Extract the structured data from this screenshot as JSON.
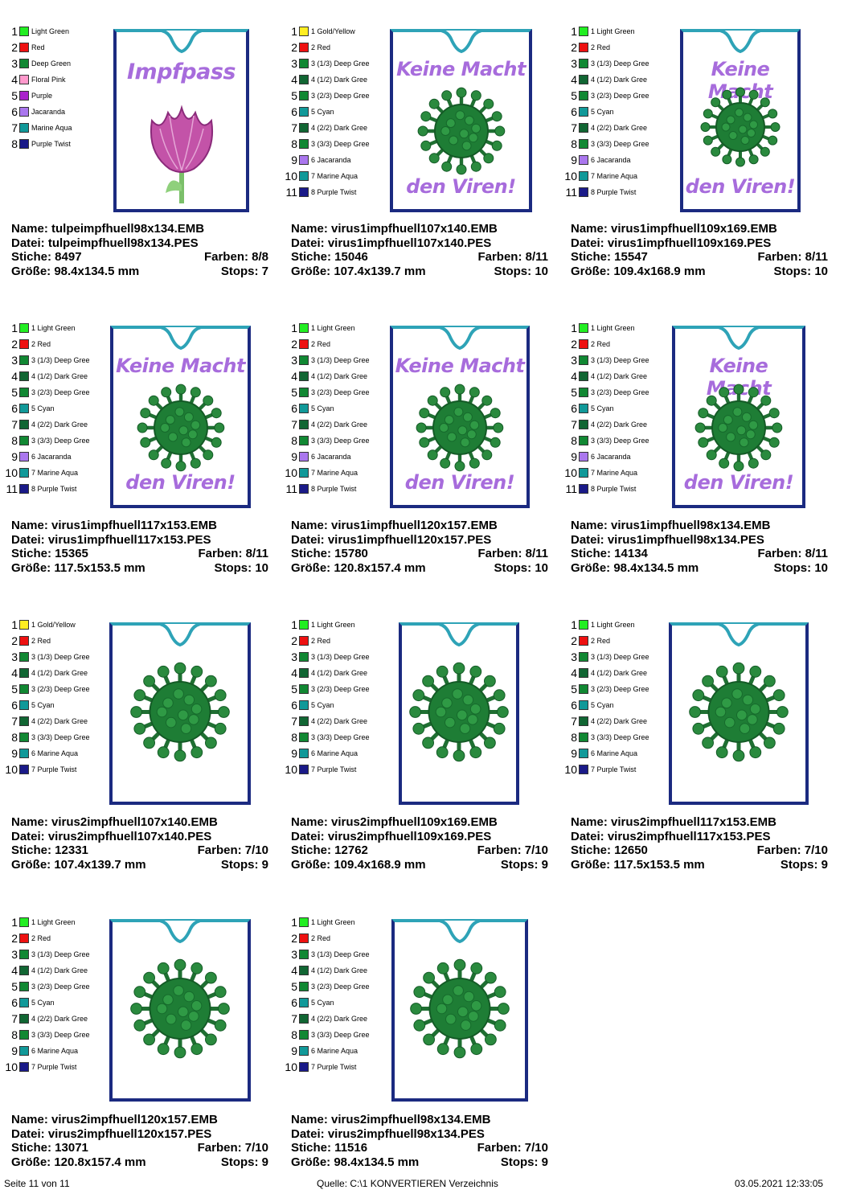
{
  "palettes": {
    "A": [
      {
        "num": "1",
        "label": "Light Green",
        "color": "#22ee22"
      },
      {
        "num": "2",
        "label": "Red",
        "color": "#ee1111"
      },
      {
        "num": "3",
        "label": "Deep Green",
        "color": "#118833"
      },
      {
        "num": "4",
        "label": "Floral Pink",
        "color": "#ff99cc"
      },
      {
        "num": "5",
        "label": "Purple",
        "color": "#aa22cc"
      },
      {
        "num": "6",
        "label": "Jacaranda",
        "color": "#aa77ee"
      },
      {
        "num": "7",
        "label": "Marine Aqua",
        "color": "#119999"
      },
      {
        "num": "8",
        "label": "Purple Twist",
        "color": "#1a1a88"
      }
    ],
    "B": [
      {
        "num": "1",
        "label": "1 Gold/Yellow",
        "color": "#ffee22"
      },
      {
        "num": "2",
        "label": "2 Red",
        "color": "#ee1111"
      },
      {
        "num": "3",
        "label": "3 (1/3) Deep Gree",
        "color": "#118833"
      },
      {
        "num": "4",
        "label": "4 (1/2) Dark Gree",
        "color": "#116633"
      },
      {
        "num": "5",
        "label": "3 (2/3) Deep Gree",
        "color": "#118833"
      },
      {
        "num": "6",
        "label": "5 Cyan",
        "color": "#119999"
      },
      {
        "num": "7",
        "label": "4 (2/2) Dark Gree",
        "color": "#116633"
      },
      {
        "num": "8",
        "label": "3 (3/3) Deep Gree",
        "color": "#118833"
      },
      {
        "num": "9",
        "label": "6 Jacaranda",
        "color": "#aa77ee"
      },
      {
        "num": "10",
        "label": "7 Marine Aqua",
        "color": "#119999"
      },
      {
        "num": "11",
        "label": "8 Purple Twist",
        "color": "#1a1a88"
      }
    ],
    "C": [
      {
        "num": "1",
        "label": "1 Light Green",
        "color": "#22ee22"
      },
      {
        "num": "2",
        "label": "2 Red",
        "color": "#ee1111"
      },
      {
        "num": "3",
        "label": "3 (1/3) Deep Gree",
        "color": "#118833"
      },
      {
        "num": "4",
        "label": "4 (1/2) Dark Gree",
        "color": "#116633"
      },
      {
        "num": "5",
        "label": "3 (2/3) Deep Gree",
        "color": "#118833"
      },
      {
        "num": "6",
        "label": "5 Cyan",
        "color": "#119999"
      },
      {
        "num": "7",
        "label": "4 (2/2) Dark Gree",
        "color": "#116633"
      },
      {
        "num": "8",
        "label": "3 (3/3) Deep Gree",
        "color": "#118833"
      },
      {
        "num": "9",
        "label": "6 Jacaranda",
        "color": "#aa77ee"
      },
      {
        "num": "10",
        "label": "7 Marine Aqua",
        "color": "#119999"
      },
      {
        "num": "11",
        "label": "8 Purple Twist",
        "color": "#1a1a88"
      }
    ],
    "D": [
      {
        "num": "1",
        "label": "1 Gold/Yellow",
        "color": "#ffee22"
      },
      {
        "num": "2",
        "label": "2 Red",
        "color": "#ee1111"
      },
      {
        "num": "3",
        "label": "3 (1/3) Deep Gree",
        "color": "#118833"
      },
      {
        "num": "4",
        "label": "4 (1/2) Dark Gree",
        "color": "#116633"
      },
      {
        "num": "5",
        "label": "3 (2/3) Deep Gree",
        "color": "#118833"
      },
      {
        "num": "6",
        "label": "5 Cyan",
        "color": "#119999"
      },
      {
        "num": "7",
        "label": "4 (2/2) Dark Gree",
        "color": "#116633"
      },
      {
        "num": "8",
        "label": "3 (3/3) Deep Gree",
        "color": "#118833"
      },
      {
        "num": "9",
        "label": "6 Marine Aqua",
        "color": "#119999"
      },
      {
        "num": "10",
        "label": "7 Purple Twist",
        "color": "#1a1a88"
      }
    ],
    "E": [
      {
        "num": "1",
        "label": "1 Light Green",
        "color": "#22ee22"
      },
      {
        "num": "2",
        "label": "2 Red",
        "color": "#ee1111"
      },
      {
        "num": "3",
        "label": "3 (1/3) Deep Gree",
        "color": "#118833"
      },
      {
        "num": "4",
        "label": "4 (1/2) Dark Gree",
        "color": "#116633"
      },
      {
        "num": "5",
        "label": "3 (2/3) Deep Gree",
        "color": "#118833"
      },
      {
        "num": "6",
        "label": "5 Cyan",
        "color": "#119999"
      },
      {
        "num": "7",
        "label": "4 (2/2) Dark Gree",
        "color": "#116633"
      },
      {
        "num": "8",
        "label": "3 (3/3) Deep Gree",
        "color": "#118833"
      },
      {
        "num": "9",
        "label": "6 Marine Aqua",
        "color": "#119999"
      },
      {
        "num": "10",
        "label": "7 Purple Twist",
        "color": "#1a1a88"
      }
    ]
  },
  "designs": [
    {
      "palette": "A",
      "kind": "tulip",
      "heading": "Impfpass",
      "footer_text": "",
      "name": "Name: tulpeimpfhuell98x134.EMB",
      "file": "Datei: tulpeimpfhuell98x134.PES",
      "stitches": "Stiche: 8497",
      "colors": "Farben: 8/8",
      "size": "Größe: 98.4x134.5 mm",
      "stops": "Stops: 7"
    },
    {
      "palette": "B",
      "kind": "virus-text",
      "heading": "Keine Macht",
      "footer_text": "den Viren!",
      "name": "Name: virus1impfhuell107x140.EMB",
      "file": "Datei: virus1impfhuell107x140.PES",
      "stitches": "Stiche: 15046",
      "colors": "Farben: 8/11",
      "size": "Größe: 107.4x139.7 mm",
      "stops": "Stops: 10"
    },
    {
      "palette": "C",
      "kind": "virus-text",
      "heading": "Keine Macht",
      "footer_text": "den Viren!",
      "name": "Name: virus1impfhuell109x169.EMB",
      "file": "Datei: virus1impfhuell109x169.PES",
      "stitches": "Stiche: 15547",
      "colors": "Farben: 8/11",
      "size": "Größe: 109.4x168.9 mm",
      "stops": "Stops: 10"
    },
    {
      "palette": "C",
      "kind": "virus-text",
      "heading": "Keine Macht",
      "footer_text": "den Viren!",
      "name": "Name: virus1impfhuell117x153.EMB",
      "file": "Datei: virus1impfhuell117x153.PES",
      "stitches": "Stiche: 15365",
      "colors": "Farben: 8/11",
      "size": "Größe: 117.5x153.5 mm",
      "stops": "Stops: 10"
    },
    {
      "palette": "C",
      "kind": "virus-text",
      "heading": "Keine Macht",
      "footer_text": "den Viren!",
      "name": "Name: virus1impfhuell120x157.EMB",
      "file": "Datei: virus1impfhuell120x157.PES",
      "stitches": "Stiche: 15780",
      "colors": "Farben: 8/11",
      "size": "Größe: 120.8x157.4 mm",
      "stops": "Stops: 10"
    },
    {
      "palette": "C",
      "kind": "virus-text",
      "heading": "Keine Macht",
      "footer_text": "den Viren!",
      "name": "Name: virus1impfhuell98x134.EMB",
      "file": "Datei: virus1impfhuell98x134.PES",
      "stitches": "Stiche: 14134",
      "colors": "Farben: 8/11",
      "size": "Größe: 98.4x134.5 mm",
      "stops": "Stops: 10"
    },
    {
      "palette": "D",
      "kind": "virus",
      "heading": "",
      "footer_text": "",
      "name": "Name: virus2impfhuell107x140.EMB",
      "file": "Datei: virus2impfhuell107x140.PES",
      "stitches": "Stiche: 12331",
      "colors": "Farben: 7/10",
      "size": "Größe: 107.4x139.7 mm",
      "stops": "Stops: 9"
    },
    {
      "palette": "E",
      "kind": "virus",
      "heading": "",
      "footer_text": "",
      "name": "Name: virus2impfhuell109x169.EMB",
      "file": "Datei: virus2impfhuell109x169.PES",
      "stitches": "Stiche: 12762",
      "colors": "Farben: 7/10",
      "size": "Größe: 109.4x168.9 mm",
      "stops": "Stops: 9"
    },
    {
      "palette": "E",
      "kind": "virus",
      "heading": "",
      "footer_text": "",
      "name": "Name: virus2impfhuell117x153.EMB",
      "file": "Datei: virus2impfhuell117x153.PES",
      "stitches": "Stiche: 12650",
      "colors": "Farben: 7/10",
      "size": "Größe: 117.5x153.5 mm",
      "stops": "Stops: 9"
    },
    {
      "palette": "E",
      "kind": "virus",
      "heading": "",
      "footer_text": "",
      "name": "Name: virus2impfhuell120x157.EMB",
      "file": "Datei: virus2impfhuell120x157.PES",
      "stitches": "Stiche: 13071",
      "colors": "Farben: 7/10",
      "size": "Größe: 120.8x157.4 mm",
      "stops": "Stops: 9"
    },
    {
      "palette": "E",
      "kind": "virus",
      "heading": "",
      "footer_text": "",
      "name": "Name: virus2impfhuell98x134.EMB",
      "file": "Datei: virus2impfhuell98x134.PES",
      "stitches": "Stiche: 11516",
      "colors": "Farben: 7/10",
      "size": "Größe: 98.4x134.5 mm",
      "stops": "Stops: 9"
    }
  ],
  "page_footer": {
    "page": "Seite 11 von 11",
    "source": "Quelle: C:\\1 KONVERTIEREN Verzeichnis",
    "datetime": "03.05.2021 12:33:05"
  },
  "colors": {
    "frame_border": "#1b2a80",
    "frame_top": "#2ea3b7",
    "heading_purple": "#a76cdc",
    "virus_green": "#1e7d35"
  }
}
